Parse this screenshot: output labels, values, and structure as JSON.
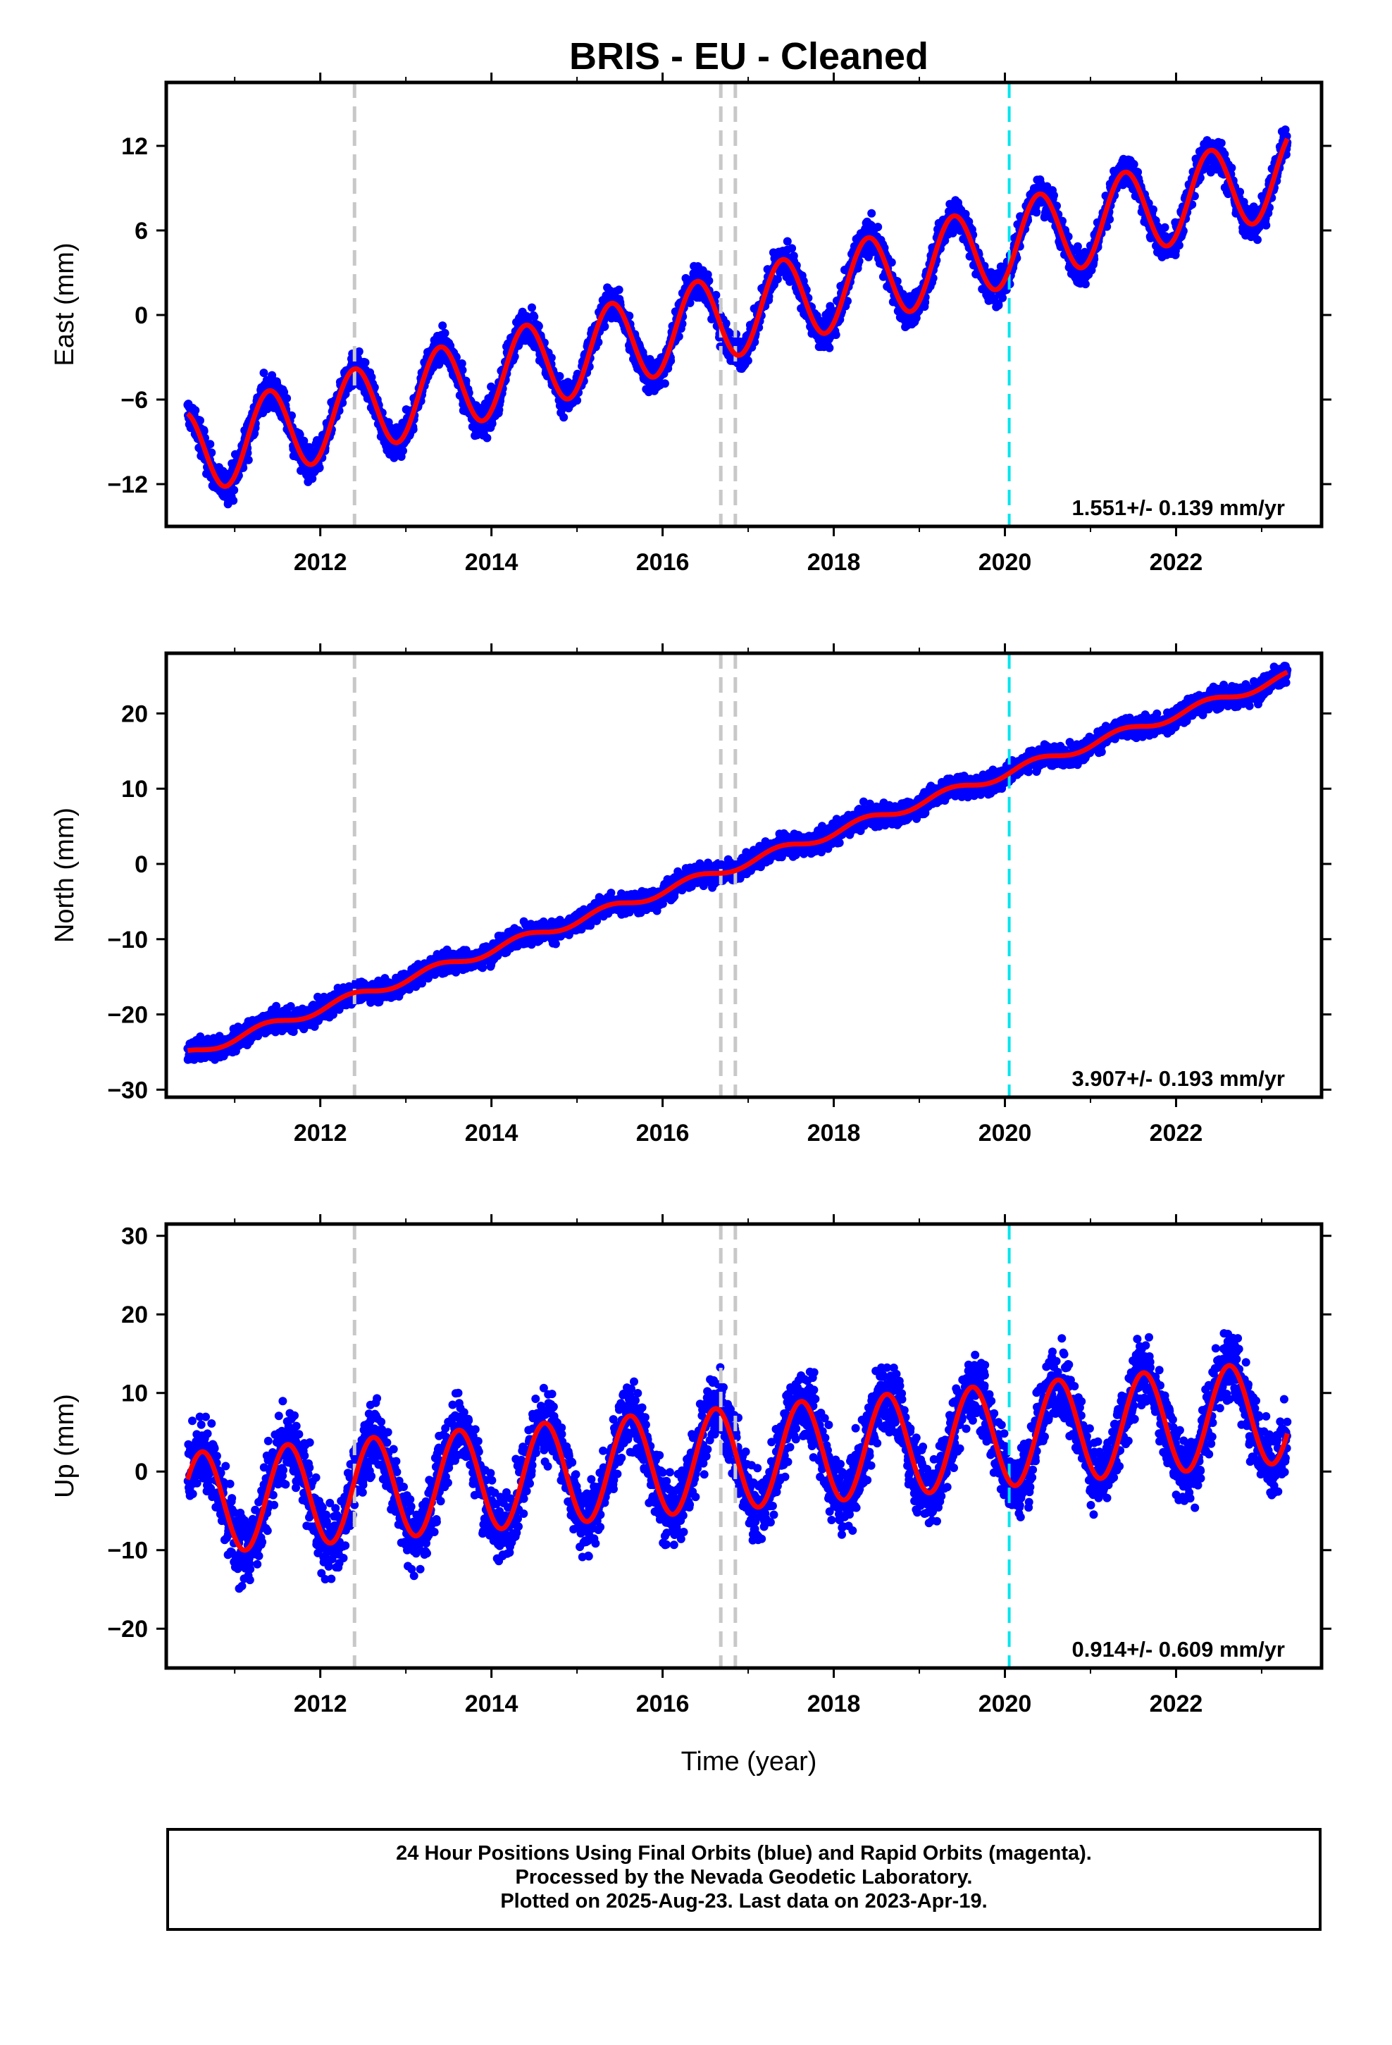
{
  "title": "BRIS  - EU - Cleaned",
  "xlabel": "Time (year)",
  "footer": [
    "24 Hour Positions Using Final Orbits (blue) and Rapid Orbits (magenta).",
    "Processed by the Nevada Geodetic Laboratory.",
    "Plotted on 2025-Aug-23. Last data on 2023-Apr-19."
  ],
  "colors": {
    "points": "#0000ff",
    "fit": "#ff0000",
    "event_gray": "#c8c8c8",
    "event_cyan": "#00e5ee"
  },
  "chart_data": [
    {
      "type": "scatter",
      "ylabel": "East (mm)",
      "xlim": [
        2010.2,
        2023.7
      ],
      "ylim": [
        -15,
        16.5
      ],
      "xticks": [
        2012,
        2014,
        2016,
        2018,
        2020,
        2022
      ],
      "yticks": [
        -12,
        -6,
        0,
        6,
        12
      ],
      "rate": "1.551+/- 0.139 mm/yr",
      "x_start": 2010.45,
      "x_end": 2023.3,
      "fit": {
        "start_value": -7.0,
        "slope": 1.551,
        "annual_amplitude": 3.0,
        "peak_phase": 0.4,
        "noise": 1.1
      },
      "events_gray": [
        2012.4,
        2016.68,
        2016.85
      ],
      "events_cyan": [
        2020.05
      ]
    },
    {
      "type": "scatter",
      "ylabel": "North (mm)",
      "xlim": [
        2010.2,
        2023.7
      ],
      "ylim": [
        -31,
        28
      ],
      "xticks": [
        2012,
        2014,
        2016,
        2018,
        2020,
        2022
      ],
      "yticks": [
        -30,
        -20,
        -10,
        0,
        10,
        20
      ],
      "rate": "3.907+/- 0.193 mm/yr",
      "x_start": 2010.45,
      "x_end": 2023.3,
      "fit": {
        "start_value": -24.8,
        "slope": 3.907,
        "annual_amplitude": 0.6,
        "peak_phase": 0.35,
        "noise": 1.3
      },
      "events_gray": [
        2012.4,
        2016.68,
        2016.85
      ],
      "events_cyan": [
        2020.05
      ]
    },
    {
      "type": "scatter",
      "ylabel": "Up (mm)",
      "xlim": [
        2010.2,
        2023.7
      ],
      "ylim": [
        -25,
        31.5
      ],
      "xticks": [
        2012,
        2014,
        2016,
        2018,
        2020,
        2022
      ],
      "yticks": [
        -20,
        -10,
        0,
        10,
        20,
        30
      ],
      "rate": "0.914+/- 0.609 mm/yr",
      "x_start": 2010.45,
      "x_end": 2023.3,
      "fit": {
        "start_value": -1.0,
        "slope": 0.914,
        "annual_amplitude": 6.5,
        "peak_phase": 0.62,
        "noise": 4.2
      },
      "events_gray": [
        2012.4,
        2016.68,
        2016.85
      ],
      "events_cyan": [
        2020.05
      ]
    }
  ]
}
